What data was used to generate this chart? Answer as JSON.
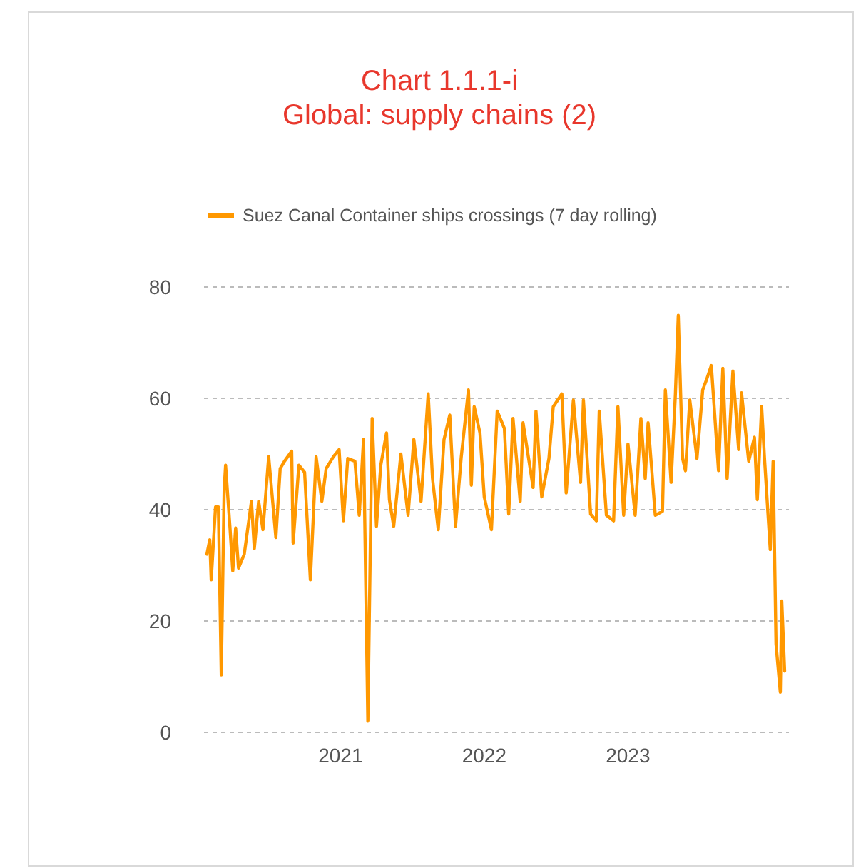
{
  "chart_data": {
    "type": "line",
    "title": "Chart 1.1.1-i\nGlobal: supply chains (2)",
    "legend": "top",
    "grid": "y",
    "xlim": [
      2020.05,
      2024.12
    ],
    "xticks": [
      2021,
      2022,
      2023
    ],
    "ylim": [
      0,
      80
    ],
    "yticks": [
      0,
      20,
      40,
      60,
      80
    ],
    "series": [
      {
        "name": "Suez Canal Container ships crossings (7 day rolling)",
        "color": "#ff9800",
        "x": [
          2020.07,
          2020.09,
          2020.1,
          2020.13,
          2020.15,
          2020.17,
          2020.19,
          2020.2,
          2020.23,
          2020.25,
          2020.27,
          2020.29,
          2020.33,
          2020.38,
          2020.4,
          2020.43,
          2020.46,
          2020.5,
          2020.55,
          2020.58,
          2020.61,
          2020.66,
          2020.67,
          2020.71,
          2020.75,
          2020.79,
          2020.83,
          2020.87,
          2020.9,
          2020.95,
          2020.99,
          2021.02,
          2021.05,
          2021.1,
          2021.13,
          2021.16,
          2021.19,
          2021.22,
          2021.25,
          2021.28,
          2021.32,
          2021.34,
          2021.37,
          2021.42,
          2021.47,
          2021.51,
          2021.56,
          2021.61,
          2021.64,
          2021.68,
          2021.72,
          2021.76,
          2021.8,
          2021.84,
          2021.89,
          2021.91,
          2021.93,
          2021.97,
          2022.0,
          2022.05,
          2022.09,
          2022.14,
          2022.17,
          2022.2,
          2022.25,
          2022.27,
          2022.34,
          2022.36,
          2022.4,
          2022.45,
          2022.48,
          2022.54,
          2022.57,
          2022.62,
          2022.67,
          2022.69,
          2022.74,
          2022.78,
          2022.8,
          2022.85,
          2022.9,
          2022.93,
          2022.97,
          2023.0,
          2023.05,
          2023.09,
          2023.12,
          2023.14,
          2023.19,
          2023.24,
          2023.26,
          2023.3,
          2023.33,
          2023.35,
          2023.38,
          2023.4,
          2023.43,
          2023.48,
          2023.52,
          2023.55,
          2023.58,
          2023.63,
          2023.66,
          2023.69,
          2023.73,
          2023.77,
          2023.79,
          2023.84,
          2023.88,
          2023.9,
          2023.93,
          2023.95,
          2023.99,
          2024.01,
          2024.03,
          2024.06,
          2024.07,
          2024.09
        ],
        "values": [
          32,
          34.6,
          27.4,
          40.5,
          40.5,
          10.3,
          43.6,
          48,
          37,
          29,
          36.7,
          29.5,
          32,
          41.5,
          33,
          41.5,
          36.4,
          49.5,
          35,
          47.4,
          48.7,
          50.5,
          34,
          48,
          46.7,
          27.4,
          49.5,
          41.5,
          47.4,
          49.5,
          50.8,
          38,
          49.2,
          48.7,
          39,
          52.6,
          2,
          56.4,
          37,
          48,
          53.8,
          41.8,
          37,
          50,
          39,
          52.6,
          41.5,
          60.8,
          45.6,
          36.4,
          52.6,
          57,
          37,
          49.5,
          61.5,
          44.4,
          58.5,
          53.8,
          42.3,
          36.4,
          57.7,
          54.6,
          39.2,
          56.4,
          41.5,
          55.6,
          44,
          57.7,
          42.3,
          49.2,
          58.5,
          60.8,
          43,
          59.7,
          44.9,
          59.7,
          39.2,
          38,
          57.7,
          39,
          38,
          58.5,
          39,
          51.8,
          39,
          56.4,
          45.6,
          55.6,
          39,
          39.7,
          61.5,
          44.9,
          60.8,
          74.9,
          49.2,
          47,
          59.7,
          49.2,
          61.5,
          63.6,
          65.9,
          47,
          65.4,
          45.6,
          64.9,
          50.8,
          61,
          48.7,
          53,
          41.8,
          58.5,
          49.2,
          32.8,
          48.7,
          15.9,
          7.2,
          23.6,
          11
        ]
      }
    ]
  }
}
